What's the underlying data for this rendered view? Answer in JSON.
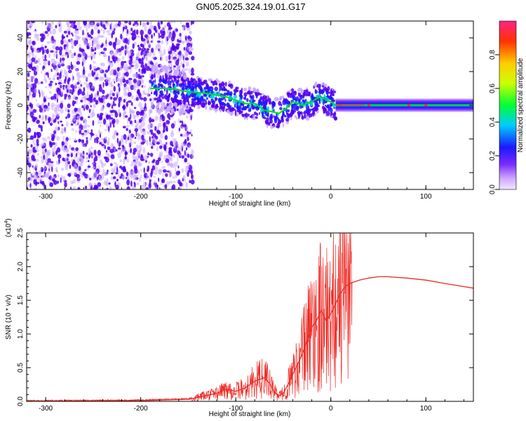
{
  "title": "GN05.2025.324.19.01.G17",
  "colors": {
    "snr_line": "#ee2a24",
    "scatter_dark": "#5500ee",
    "scatter_light": "#c8a8ff",
    "ridge": "#00e000"
  },
  "chart_data": [
    {
      "type": "heatmap",
      "name": "spectrogram",
      "xlabel": "Height of straight line (km)",
      "ylabel": "Frequency (Hz)",
      "xlim": [
        -320,
        150
      ],
      "ylim": [
        -50,
        50
      ],
      "xticks": [
        -300,
        -200,
        -100,
        0,
        100
      ],
      "yticks": [
        -40,
        -20,
        0,
        20,
        40
      ],
      "ridge": {
        "x": [
          -190,
          -170,
          -150,
          -130,
          -110,
          -100,
          -90,
          -80,
          -70,
          -60,
          -55,
          -50,
          -45,
          -40,
          -35,
          -30,
          -25,
          -20,
          -15,
          -10,
          -5,
          0,
          5,
          150
        ],
        "y": [
          10,
          10,
          8,
          7,
          5,
          3,
          1,
          1,
          -3,
          -4,
          -5,
          -3,
          -1,
          2,
          1,
          0,
          1,
          2,
          4,
          5,
          3,
          2,
          0,
          0
        ]
      },
      "colorbar": {
        "label": "Normalized spectral amplitude",
        "range": [
          0,
          1
        ],
        "ticks": [
          "0.0",
          "0.2",
          "0.4",
          "0.6",
          "0.8"
        ]
      }
    },
    {
      "type": "line",
      "name": "snr",
      "xlabel": "Height of straight line (km)",
      "ylabel": "SNR (10 * v/v)",
      "scale_label": "(x10",
      "scale_exp": "4",
      "xlim": [
        -320,
        150
      ],
      "ylim": [
        0,
        2.5
      ],
      "xticks": [
        -300,
        -200,
        -100,
        0,
        100
      ],
      "yticks": [
        "0.0",
        "0.5",
        "1.0",
        "1.5",
        "2.0",
        "2.5"
      ],
      "x": [
        -320,
        -200,
        -150,
        -140,
        -120,
        -110,
        -100,
        -90,
        -80,
        -70,
        -65,
        -60,
        -55,
        -50,
        -45,
        -40,
        -35,
        -30,
        -25,
        -20,
        -15,
        -10,
        -5,
        0,
        5,
        10,
        15,
        20,
        30,
        40,
        50,
        60,
        80,
        100,
        120,
        150
      ],
      "y": [
        0.0,
        0.01,
        0.03,
        0.06,
        0.12,
        0.18,
        0.15,
        0.2,
        0.3,
        0.35,
        0.28,
        0.15,
        0.08,
        0.12,
        0.25,
        0.4,
        0.55,
        0.7,
        0.9,
        1.1,
        1.2,
        1.35,
        1.2,
        1.3,
        1.45,
        1.6,
        1.7,
        1.75,
        1.8,
        1.83,
        1.85,
        1.85,
        1.83,
        1.8,
        1.75,
        1.68
      ]
    }
  ]
}
